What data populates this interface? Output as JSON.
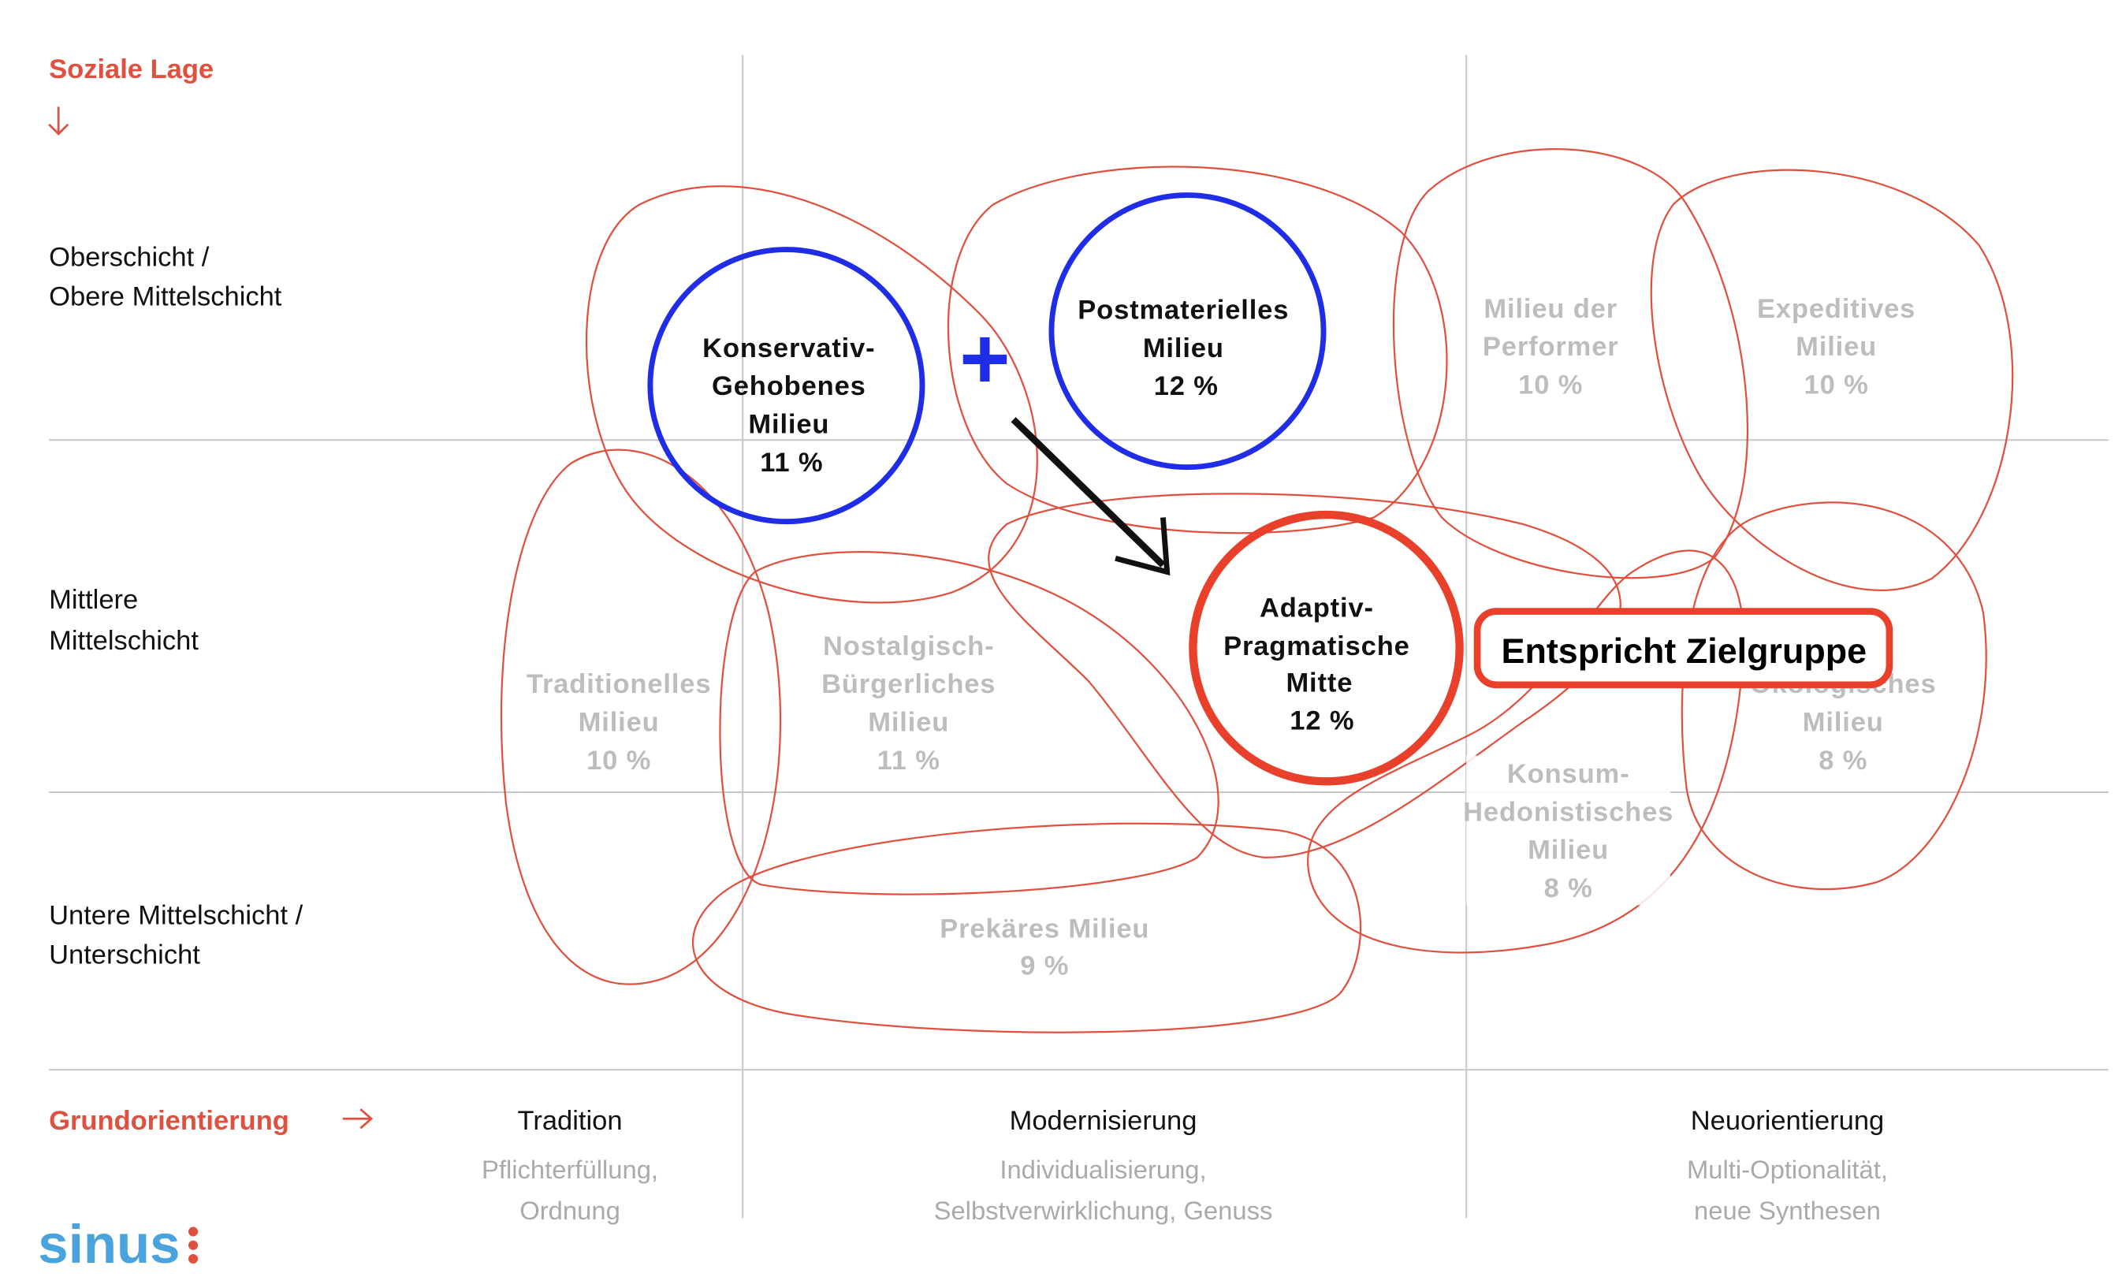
{
  "axes": {
    "y_title": "Soziale Lage",
    "x_title": "Grundorientierung",
    "rows": [
      {
        "line1": "Oberschicht /",
        "line2": "Obere Mittelschicht"
      },
      {
        "line1": "Mittlere",
        "line2": "Mittelschicht"
      },
      {
        "line1": "Untere Mittelschicht /",
        "line2": "Unterschicht"
      }
    ],
    "columns": [
      {
        "title": "Tradition",
        "sub1": "Pflichterfüllung,",
        "sub2": "Ordnung"
      },
      {
        "title": "Modernisierung",
        "sub1": "Individualisierung,",
        "sub2": "Selbstverwirklichung, Genuss"
      },
      {
        "title": "Neuorientierung",
        "sub1": "Multi-Optionalität,",
        "sub2": "neue Synthesen"
      }
    ]
  },
  "milieus": {
    "konservativ": {
      "l1": "Konservativ-",
      "l2": "Gehobenes",
      "l3": "Milieu",
      "pct": "11 %"
    },
    "postmateriell": {
      "l1": "Postmaterielles",
      "l2": "Milieu",
      "pct": "12 %"
    },
    "performer": {
      "l1": "Milieu der",
      "l2": "Performer",
      "pct": "10 %"
    },
    "expeditiv": {
      "l1": "Expeditives",
      "l2": "Milieu",
      "pct": "10 %"
    },
    "traditionell": {
      "l1": "Traditionelles",
      "l2": "Milieu",
      "pct": "10 %"
    },
    "nostalgisch": {
      "l1": "Nostalgisch-",
      "l2": "Bürgerliches",
      "l3": "Milieu",
      "pct": "11 %"
    },
    "adaptiv": {
      "l1": "Adaptiv-",
      "l2": "Pragmatische",
      "l3": "Mitte",
      "pct": "12 %"
    },
    "oekologisch": {
      "l1": "Ökologisches",
      "l2": "Milieu",
      "pct": "8 %"
    },
    "konsum": {
      "l1": "Konsum-",
      "l2": "Hedonistisches",
      "l3": "Milieu",
      "pct": "8 %"
    },
    "prekaer": {
      "l1": "Prekäres Milieu",
      "pct": "9 %"
    }
  },
  "annotations": {
    "plus": "+",
    "callout": "Entspricht Zielgruppe"
  },
  "logo": "sinus",
  "colors": {
    "accent_red": "#e0503f",
    "highlight_blue": "#1f2ee6",
    "highlight_red": "#e8402a",
    "logo_blue": "#4aa3dc"
  }
}
